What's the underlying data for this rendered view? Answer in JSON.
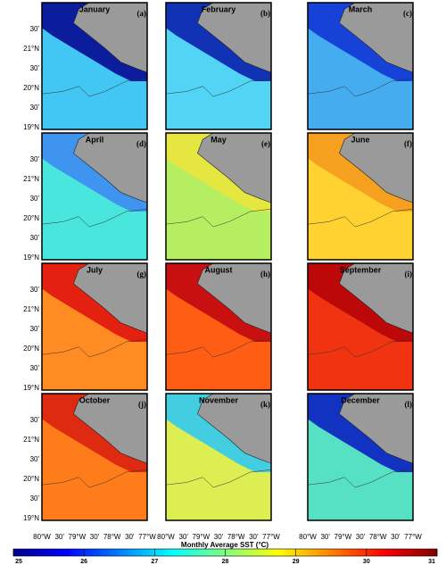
{
  "panels": [
    {
      "title": "January",
      "letter": "(a)",
      "sea_color": "#42c6f4",
      "shelf_color": "#0b1c9c"
    },
    {
      "title": "February",
      "letter": "(b)",
      "sea_color": "#52d4f4",
      "shelf_color": "#1132b4"
    },
    {
      "title": "March",
      "letter": "(c)",
      "sea_color": "#45acf0",
      "shelf_color": "#1642d8"
    },
    {
      "title": "April",
      "letter": "(d)",
      "sea_color": "#48e6dc",
      "shelf_color": "#3f94f0"
    },
    {
      "title": "May",
      "letter": "(e)",
      "sea_color": "#b6ee62",
      "shelf_color": "#e6e640"
    },
    {
      "title": "June",
      "letter": "(f)",
      "sea_color": "#ffd232",
      "shelf_color": "#f6a020"
    },
    {
      "title": "July",
      "letter": "(g)",
      "sea_color": "#ff8c22",
      "shelf_color": "#e42010"
    },
    {
      "title": "August",
      "letter": "(h)",
      "sea_color": "#ff5c14",
      "shelf_color": "#c81010"
    },
    {
      "title": "September",
      "letter": "(i)",
      "sea_color": "#f03412",
      "shelf_color": "#bc0808"
    },
    {
      "title": "October",
      "letter": "(j)",
      "sea_color": "#ff7c1a",
      "shelf_color": "#de2a10"
    },
    {
      "title": "November",
      "letter": "(k)",
      "sea_color": "#dcee52",
      "shelf_color": "#42cee0"
    },
    {
      "title": "December",
      "letter": "(l)",
      "sea_color": "#56e0c4",
      "shelf_color": "#1232c2"
    }
  ],
  "lat_labels": [
    "30'",
    "21°N",
    "30'",
    "20°N",
    "30'",
    "19°N"
  ],
  "lon_labels": [
    "80°W",
    "30'",
    "79°W",
    "30'",
    "78°W",
    "30'",
    "77°W"
  ],
  "colorbar": {
    "label": "Monthly Average SST (°C)",
    "lim": [
      25,
      31
    ],
    "ticks": [
      25,
      26,
      27,
      28,
      29,
      30,
      31
    ]
  }
}
